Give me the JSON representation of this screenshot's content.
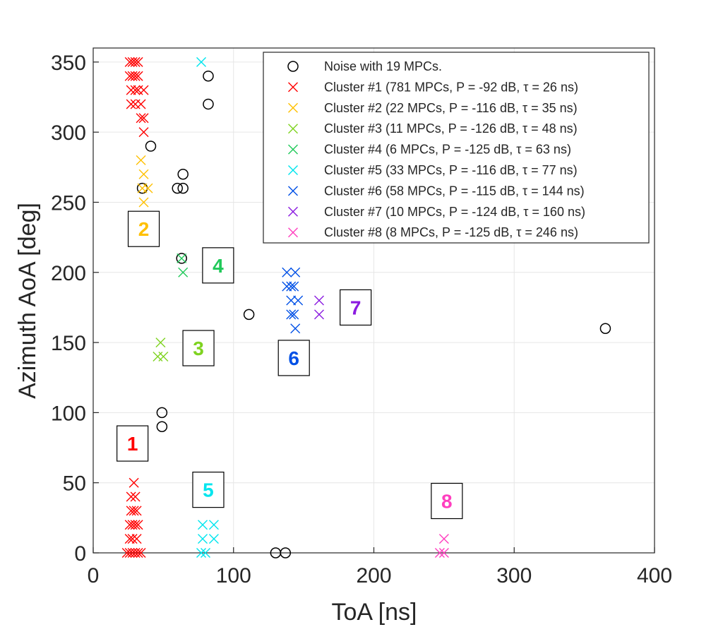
{
  "chart_data": {
    "type": "scatter",
    "title": "",
    "xlabel": "ToA [ns]",
    "ylabel": "Azimuth AoA [deg]",
    "xlim": [
      0,
      400
    ],
    "ylim": [
      0,
      360
    ],
    "xticks": [
      0,
      100,
      200,
      300,
      400
    ],
    "yticks": [
      0,
      50,
      100,
      150,
      200,
      250,
      300,
      350
    ],
    "grid": true,
    "legend_position": "top-right",
    "series": [
      {
        "name": "Noise with 19 MPCs.",
        "marker": "circle",
        "color": "#000000",
        "points": [
          [
            82,
            340
          ],
          [
            82,
            320
          ],
          [
            41,
            290
          ],
          [
            64,
            270
          ],
          [
            60,
            260
          ],
          [
            64,
            260
          ],
          [
            35,
            260
          ],
          [
            63,
            210
          ],
          [
            111,
            170
          ],
          [
            365,
            160
          ],
          [
            49,
            100
          ],
          [
            49,
            90
          ],
          [
            130,
            0
          ],
          [
            137,
            0
          ]
        ]
      },
      {
        "name": "Cluster #1 (781 MPCs, P = -92 dB, τ = 26 ns)",
        "marker": "x",
        "color": "#ff0000",
        "points": [
          [
            26,
            350
          ],
          [
            28,
            350
          ],
          [
            30,
            350
          ],
          [
            32,
            350
          ],
          [
            26,
            340
          ],
          [
            28,
            340
          ],
          [
            30,
            340
          ],
          [
            32,
            340
          ],
          [
            27,
            330
          ],
          [
            30,
            330
          ],
          [
            32,
            330
          ],
          [
            36,
            330
          ],
          [
            27,
            320
          ],
          [
            30,
            320
          ],
          [
            34,
            320
          ],
          [
            36,
            310
          ],
          [
            34,
            310
          ],
          [
            36,
            300
          ],
          [
            29,
            50
          ],
          [
            27,
            40
          ],
          [
            30,
            40
          ],
          [
            27,
            30
          ],
          [
            29,
            30
          ],
          [
            31,
            30
          ],
          [
            26,
            20
          ],
          [
            28,
            20
          ],
          [
            30,
            20
          ],
          [
            32,
            20
          ],
          [
            26,
            10
          ],
          [
            28,
            10
          ],
          [
            31,
            10
          ],
          [
            24,
            0
          ],
          [
            26,
            0
          ],
          [
            28,
            0
          ],
          [
            30,
            0
          ],
          [
            32,
            0
          ],
          [
            34,
            0
          ]
        ]
      },
      {
        "name": "Cluster #2 (22 MPCs, P = -116 dB, τ = 35 ns)",
        "marker": "x",
        "color": "#ffc000",
        "points": [
          [
            34,
            280
          ],
          [
            36,
            270
          ],
          [
            35,
            260
          ],
          [
            39,
            260
          ],
          [
            36,
            250
          ]
        ]
      },
      {
        "name": "Cluster #3 (11 MPCs, P = -126 dB, τ = 48 ns)",
        "marker": "x",
        "color": "#7fd321",
        "points": [
          [
            48,
            150
          ],
          [
            46,
            140
          ],
          [
            50,
            140
          ]
        ]
      },
      {
        "name": "Cluster #4 (6 MPCs, P = -125 dB, τ = 63 ns)",
        "marker": "x",
        "color": "#21c95a",
        "points": [
          [
            63,
            210
          ],
          [
            64,
            200
          ]
        ]
      },
      {
        "name": "Cluster #5 (33 MPCs, P = -116 dB, τ = 77 ns)",
        "marker": "x",
        "color": "#00e5ee",
        "points": [
          [
            77,
            350
          ],
          [
            78,
            20
          ],
          [
            86,
            20
          ],
          [
            78,
            10
          ],
          [
            86,
            10
          ],
          [
            77,
            0
          ],
          [
            80,
            0
          ]
        ]
      },
      {
        "name": "Cluster #6 (58 MPCs, P = -115 dB, τ = 144 ns)",
        "marker": "x",
        "color": "#0050e6",
        "points": [
          [
            138,
            200
          ],
          [
            144,
            200
          ],
          [
            138,
            190
          ],
          [
            141,
            190
          ],
          [
            143,
            190
          ],
          [
            141,
            180
          ],
          [
            146,
            180
          ],
          [
            141,
            170
          ],
          [
            143,
            170
          ],
          [
            144,
            160
          ]
        ]
      },
      {
        "name": "Cluster #7 (10 MPCs, P = -124 dB, τ = 160 ns)",
        "marker": "x",
        "color": "#8b1be0",
        "points": [
          [
            161,
            180
          ],
          [
            161,
            170
          ]
        ]
      },
      {
        "name": "Cluster #8 (8 MPCs, P = -125 dB, τ = 246 ns)",
        "marker": "x",
        "color": "#ff3fbf",
        "points": [
          [
            250,
            10
          ],
          [
            247,
            0
          ],
          [
            250,
            0
          ]
        ]
      }
    ],
    "cluster_labels": [
      {
        "text": "1",
        "color": "#ff0000",
        "x": 28,
        "y": 78
      },
      {
        "text": "2",
        "color": "#ffc000",
        "x": 36,
        "y": 231
      },
      {
        "text": "3",
        "color": "#7fd321",
        "x": 75,
        "y": 146
      },
      {
        "text": "4",
        "color": "#21c95a",
        "x": 89,
        "y": 205
      },
      {
        "text": "5",
        "color": "#00e5ee",
        "x": 82,
        "y": 45
      },
      {
        "text": "6",
        "color": "#0050e6",
        "x": 143,
        "y": 139
      },
      {
        "text": "7",
        "color": "#8b1be0",
        "x": 187,
        "y": 175
      },
      {
        "text": "8",
        "color": "#ff3fbf",
        "x": 252,
        "y": 37
      }
    ]
  }
}
